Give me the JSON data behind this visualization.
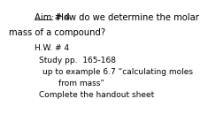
{
  "title_aim": "Aim # 4",
  "title_rest": ": How do we determine the molar",
  "title_line2": "mass of a compound?",
  "hw_line1": "H.W. # 4",
  "hw_line2": "Study pp.  165-168",
  "hw_line3": "up to example 6.7 “calculating moles",
  "hw_line4": "from mass”",
  "hw_line5": "Complete the handout sheet",
  "bg_color": "#ffffff",
  "text_color": "#000000",
  "font_size_title": 7.2,
  "font_size_body": 6.5
}
